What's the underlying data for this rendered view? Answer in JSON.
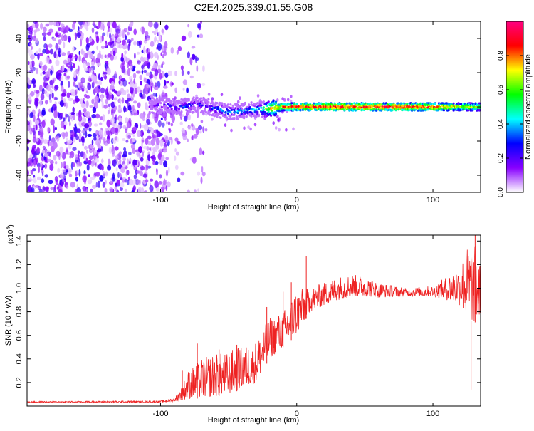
{
  "title": "C2E4.2025.339.01.55.G08",
  "chart_data": [
    {
      "type": "heatmap",
      "title": "C2E4.2025.339.01.55.G08",
      "xlabel": "Height of straight line (km)",
      "ylabel": "Frequency (Hz)",
      "xlim": [
        -198,
        135
      ],
      "ylim": [
        -50,
        50
      ],
      "xticks": [
        -100,
        0,
        100
      ],
      "xtick_labels": [
        "-100",
        "0",
        "100"
      ],
      "yticks": [
        -40,
        -20,
        0,
        20,
        40
      ],
      "ytick_labels": [
        "-40",
        "-20",
        "0",
        "20",
        "40"
      ],
      "noise_region_x": [
        -198,
        -95
      ],
      "signal_trace": [
        {
          "x": -108,
          "y": 0.5,
          "amp": 0.25
        },
        {
          "x": -95,
          "y": 1.0,
          "amp": 0.3
        },
        {
          "x": -88,
          "y": -0.5,
          "amp": 0.35
        },
        {
          "x": -80,
          "y": 0.5,
          "amp": 0.4
        },
        {
          "x": -72,
          "y": 1.5,
          "amp": 0.35
        },
        {
          "x": -65,
          "y": 0.0,
          "amp": 0.35
        },
        {
          "x": -58,
          "y": -1.5,
          "amp": 0.45
        },
        {
          "x": -50,
          "y": -3.0,
          "amp": 0.45
        },
        {
          "x": -42,
          "y": -2.5,
          "amp": 0.45
        },
        {
          "x": -35,
          "y": -2.0,
          "amp": 0.45
        },
        {
          "x": -28,
          "y": -1.5,
          "amp": 0.5
        },
        {
          "x": -20,
          "y": -1.0,
          "amp": 0.8
        },
        {
          "x": -10,
          "y": 0.0,
          "amp": 0.9
        },
        {
          "x": 0,
          "y": 0.0,
          "amp": 0.95
        },
        {
          "x": 20,
          "y": 0.0,
          "amp": 0.97
        },
        {
          "x": 50,
          "y": 0.0,
          "amp": 0.98
        },
        {
          "x": 80,
          "y": 0.0,
          "amp": 0.98
        },
        {
          "x": 100,
          "y": 0.0,
          "amp": 0.95
        },
        {
          "x": 110,
          "y": 0.0,
          "amp": 0.85
        },
        {
          "x": 125,
          "y": 0.0,
          "amp": 0.8
        },
        {
          "x": 135,
          "y": 0.0,
          "amp": 0.75
        }
      ]
    },
    {
      "type": "colorbar",
      "label": "Normalized spectral amplitude",
      "range": [
        0,
        1
      ],
      "ticks": [
        0.0,
        0.2,
        0.4,
        0.6,
        0.8
      ],
      "tick_labels": [
        "0.0",
        "0.2",
        "0.4",
        "0.6",
        "0.8"
      ],
      "colors": [
        "#ffffff",
        "#8800ff",
        "#0000ff",
        "#00ffff",
        "#00ff00",
        "#ffff00",
        "#ff0000",
        "#ff0080"
      ]
    },
    {
      "type": "line",
      "xlabel": "Height of straight line (km)",
      "ylabel": "SNR (10 * v/v)",
      "scale_label": "(x10",
      "scale_exp": "4",
      "scale_close": ")",
      "xlim": [
        -198,
        135
      ],
      "ylim": [
        0,
        1.45
      ],
      "xticks": [
        -100,
        0,
        100
      ],
      "xtick_labels": [
        "-100",
        "0",
        "100"
      ],
      "yticks": [
        0.2,
        0.4,
        0.6,
        0.8,
        1.0,
        1.2,
        1.4
      ],
      "ytick_labels": [
        "0.2",
        "0.4",
        "0.6",
        "0.8",
        "1.0",
        "1.2",
        "1.4"
      ],
      "series": [
        {
          "name": "SNR",
          "color": "#ee2222",
          "envelope_x": [
            -198,
            -100,
            -90,
            -85,
            -80,
            -75,
            -70,
            -60,
            -50,
            -45,
            -40,
            -30,
            -25,
            -20,
            -10,
            -5,
            0,
            5,
            10,
            20,
            30,
            40,
            50,
            60,
            80,
            100,
            110,
            120,
            125,
            130,
            135
          ],
          "envelope_low": [
            0.03,
            0.03,
            0.04,
            0.05,
            0.06,
            0.06,
            0.07,
            0.08,
            0.1,
            0.12,
            0.15,
            0.2,
            0.3,
            0.4,
            0.5,
            0.55,
            0.6,
            0.7,
            0.8,
            0.85,
            0.9,
            0.92,
            0.93,
            0.92,
            0.93,
            0.93,
            0.9,
            0.85,
            0.75,
            0.7,
            0.75
          ],
          "envelope_high": [
            0.04,
            0.045,
            0.07,
            0.15,
            0.3,
            0.35,
            0.4,
            0.45,
            0.45,
            0.5,
            0.5,
            0.55,
            0.65,
            0.75,
            0.8,
            0.9,
            1.0,
            1.0,
            1.0,
            1.05,
            1.1,
            1.12,
            1.1,
            1.05,
            1.0,
            1.02,
            1.1,
            1.2,
            1.35,
            1.4,
            1.2
          ],
          "spikes": [
            {
              "x": -84,
              "y": 0.3
            },
            {
              "x": -73,
              "y": 0.53
            },
            {
              "x": -57,
              "y": 0.48
            },
            {
              "x": -44,
              "y": 0.52
            },
            {
              "x": -22,
              "y": 0.84
            },
            {
              "x": -10,
              "y": 0.97
            },
            {
              "x": -4,
              "y": 1.05
            },
            {
              "x": 7,
              "y": 1.27
            },
            {
              "x": 128,
              "y": 0.14
            },
            {
              "x": 131,
              "y": 1.45
            }
          ]
        }
      ]
    }
  ]
}
